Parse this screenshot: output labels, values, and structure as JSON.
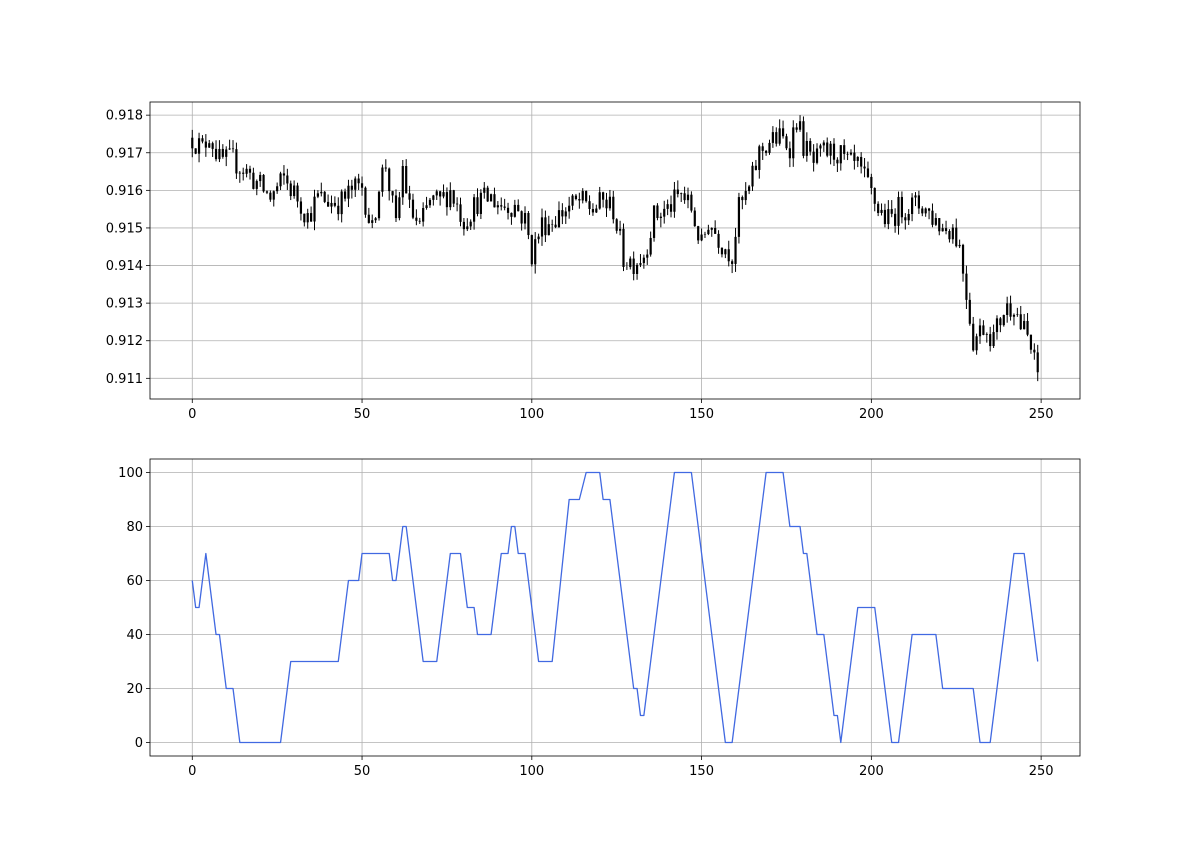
{
  "chart_data": [
    {
      "type": "candlestick",
      "title": "",
      "xlabel": "",
      "ylabel": "",
      "xlim": [
        -12.45,
        261.45
      ],
      "ylim": [
        0.91045,
        0.91835
      ],
      "grid": true,
      "bar_color": "#000000",
      "xticks": [
        0,
        50,
        100,
        150,
        200,
        250
      ],
      "yticks": [
        0.911,
        0.912,
        0.913,
        0.914,
        0.915,
        0.916,
        0.917,
        0.918
      ],
      "ytick_labels": [
        "0.911",
        "0.912",
        "0.913",
        "0.914",
        "0.915",
        "0.916",
        "0.917",
        "0.918"
      ],
      "close_anchors": [
        [
          0,
          0.9174
        ],
        [
          3,
          0.9171
        ],
        [
          5,
          0.9175
        ],
        [
          8,
          0.9168
        ],
        [
          12,
          0.9168
        ],
        [
          16,
          0.9165
        ],
        [
          20,
          0.9161
        ],
        [
          23,
          0.9158
        ],
        [
          27,
          0.9163
        ],
        [
          31,
          0.9158
        ],
        [
          34,
          0.9153
        ],
        [
          37,
          0.9158
        ],
        [
          41,
          0.9157
        ],
        [
          44,
          0.9157
        ],
        [
          47,
          0.916
        ],
        [
          50,
          0.9161
        ],
        [
          53,
          0.9149
        ],
        [
          55,
          0.9162
        ],
        [
          57,
          0.9167
        ],
        [
          60,
          0.915
        ],
        [
          62,
          0.9166
        ],
        [
          64,
          0.9155
        ],
        [
          67,
          0.915
        ],
        [
          70,
          0.9157
        ],
        [
          73,
          0.9157
        ],
        [
          76,
          0.916
        ],
        [
          80,
          0.9152
        ],
        [
          84,
          0.9157
        ],
        [
          88,
          0.9158
        ],
        [
          91,
          0.9156
        ],
        [
          95,
          0.9156
        ],
        [
          98,
          0.9152
        ],
        [
          100,
          0.9143
        ],
        [
          103,
          0.9151
        ],
        [
          106,
          0.9152
        ],
        [
          110,
          0.9155
        ],
        [
          114,
          0.9157
        ],
        [
          118,
          0.9155
        ],
        [
          121,
          0.9157
        ],
        [
          124,
          0.9155
        ],
        [
          127,
          0.9142
        ],
        [
          130,
          0.9141
        ],
        [
          133,
          0.9143
        ],
        [
          136,
          0.9153
        ],
        [
          140,
          0.9155
        ],
        [
          144,
          0.9159
        ],
        [
          147,
          0.9155
        ],
        [
          150,
          0.9145
        ],
        [
          152,
          0.9152
        ],
        [
          154,
          0.9149
        ],
        [
          156,
          0.9146
        ],
        [
          159,
          0.9143
        ],
        [
          161,
          0.9155
        ],
        [
          164,
          0.916
        ],
        [
          167,
          0.917
        ],
        [
          170,
          0.9173
        ],
        [
          173,
          0.9174
        ],
        [
          176,
          0.9172
        ],
        [
          178,
          0.9179
        ],
        [
          180,
          0.9172
        ],
        [
          183,
          0.9167
        ],
        [
          186,
          0.917
        ],
        [
          190,
          0.917
        ],
        [
          193,
          0.9167
        ],
        [
          196,
          0.9166
        ],
        [
          199,
          0.9161
        ],
        [
          202,
          0.9155
        ],
        [
          205,
          0.9152
        ],
        [
          208,
          0.9155
        ],
        [
          212,
          0.9156
        ],
        [
          215,
          0.9156
        ],
        [
          218,
          0.9153
        ],
        [
          221,
          0.915
        ],
        [
          224,
          0.915
        ],
        [
          226,
          0.9145
        ],
        [
          228,
          0.9133
        ],
        [
          230,
          0.912
        ],
        [
          233,
          0.9124
        ],
        [
          236,
          0.9121
        ],
        [
          239,
          0.9128
        ],
        [
          242,
          0.913
        ],
        [
          244,
          0.9124
        ],
        [
          246,
          0.9121
        ],
        [
          248,
          0.9114
        ],
        [
          249,
          0.9111
        ]
      ]
    },
    {
      "type": "line",
      "title": "",
      "xlabel": "",
      "ylabel": "",
      "xlim": [
        -12.45,
        261.45
      ],
      "ylim": [
        -5,
        105
      ],
      "grid": true,
      "line_color": "#4169E1",
      "xticks": [
        0,
        50,
        100,
        150,
        200,
        250
      ],
      "yticks": [
        0,
        20,
        40,
        60,
        80,
        100
      ],
      "points": [
        [
          0,
          60
        ],
        [
          1,
          50
        ],
        [
          2,
          50
        ],
        [
          4,
          70
        ],
        [
          7,
          40
        ],
        [
          8,
          40
        ],
        [
          10,
          20
        ],
        [
          12,
          20
        ],
        [
          14,
          0
        ],
        [
          26,
          0
        ],
        [
          29,
          30
        ],
        [
          43,
          30
        ],
        [
          46,
          60
        ],
        [
          49,
          60
        ],
        [
          50,
          70
        ],
        [
          58,
          70
        ],
        [
          59,
          60
        ],
        [
          60,
          60
        ],
        [
          62,
          80
        ],
        [
          63,
          80
        ],
        [
          68,
          30
        ],
        [
          72,
          30
        ],
        [
          76,
          70
        ],
        [
          79,
          70
        ],
        [
          81,
          50
        ],
        [
          83,
          50
        ],
        [
          84,
          40
        ],
        [
          88,
          40
        ],
        [
          91,
          70
        ],
        [
          93,
          70
        ],
        [
          94,
          80
        ],
        [
          95,
          80
        ],
        [
          96,
          70
        ],
        [
          98,
          70
        ],
        [
          102,
          30
        ],
        [
          106,
          30
        ],
        [
          111,
          90
        ],
        [
          114,
          90
        ],
        [
          116,
          100
        ],
        [
          120,
          100
        ],
        [
          121,
          90
        ],
        [
          123,
          90
        ],
        [
          130,
          20
        ],
        [
          131,
          20
        ],
        [
          132,
          10
        ],
        [
          133,
          10
        ],
        [
          142,
          100
        ],
        [
          147,
          100
        ],
        [
          157,
          0
        ],
        [
          159,
          0
        ],
        [
          169,
          100
        ],
        [
          174,
          100
        ],
        [
          176,
          80
        ],
        [
          179,
          80
        ],
        [
          180,
          70
        ],
        [
          181,
          70
        ],
        [
          184,
          40
        ],
        [
          186,
          40
        ],
        [
          189,
          10
        ],
        [
          190,
          10
        ],
        [
          191,
          0
        ],
        [
          196,
          50
        ],
        [
          201,
          50
        ],
        [
          206,
          0
        ],
        [
          208,
          0
        ],
        [
          212,
          40
        ],
        [
          219,
          40
        ],
        [
          221,
          20
        ],
        [
          230,
          20
        ],
        [
          232,
          0
        ],
        [
          235,
          0
        ],
        [
          242,
          70
        ],
        [
          245,
          70
        ],
        [
          249,
          30
        ]
      ]
    }
  ]
}
